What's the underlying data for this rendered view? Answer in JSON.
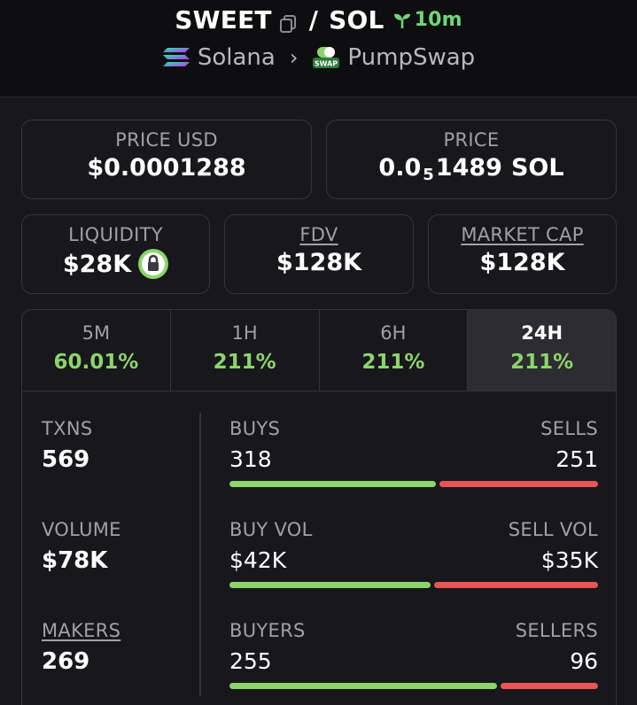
{
  "header": {
    "token": "SWEET",
    "separator": "/",
    "quote": "SOL",
    "age": "10m",
    "chain": "Solana",
    "dex": "PumpSwap",
    "dex_logo_text": "SWAP"
  },
  "prices": {
    "price_usd_label": "PRICE USD",
    "price_usd": "$0.0001288",
    "price_label": "PRICE",
    "price_prefix": "0.0",
    "price_zeros": "5",
    "price_digits": "1489",
    "price_unit": "SOL"
  },
  "metrics": {
    "liquidity_label": "LIQUIDITY",
    "liquidity": "$28K",
    "fdv_label": "FDV",
    "fdv": "$128K",
    "mcap_label": "MARKET CAP",
    "mcap": "$128K"
  },
  "tabs": [
    {
      "label": "5M",
      "value": "60.01%"
    },
    {
      "label": "1H",
      "value": "211%"
    },
    {
      "label": "6H",
      "value": "211%"
    },
    {
      "label": "24H",
      "value": "211%"
    }
  ],
  "stats": {
    "txns_label": "TXNS",
    "txns": "569",
    "volume_label": "VOLUME",
    "volume": "$78K",
    "makers_label": "MAKERS",
    "makers": "269"
  },
  "pairs": {
    "buys_label": "BUYS",
    "buys": "318",
    "sells_label": "SELLS",
    "sells": "251",
    "buys_share": 0.559,
    "buy_vol_label": "BUY VOL",
    "buy_vol": "$42K",
    "sell_vol_label": "SELL VOL",
    "sell_vol": "$35K",
    "buy_vol_share": 0.545,
    "buyers_label": "BUYERS",
    "buyers": "255",
    "sellers_label": "SELLERS",
    "sellers": "96",
    "buyers_share": 0.727
  },
  "colors": {
    "positive": "#8dd46a",
    "negative": "#e85555",
    "age": "#6fd77a"
  }
}
